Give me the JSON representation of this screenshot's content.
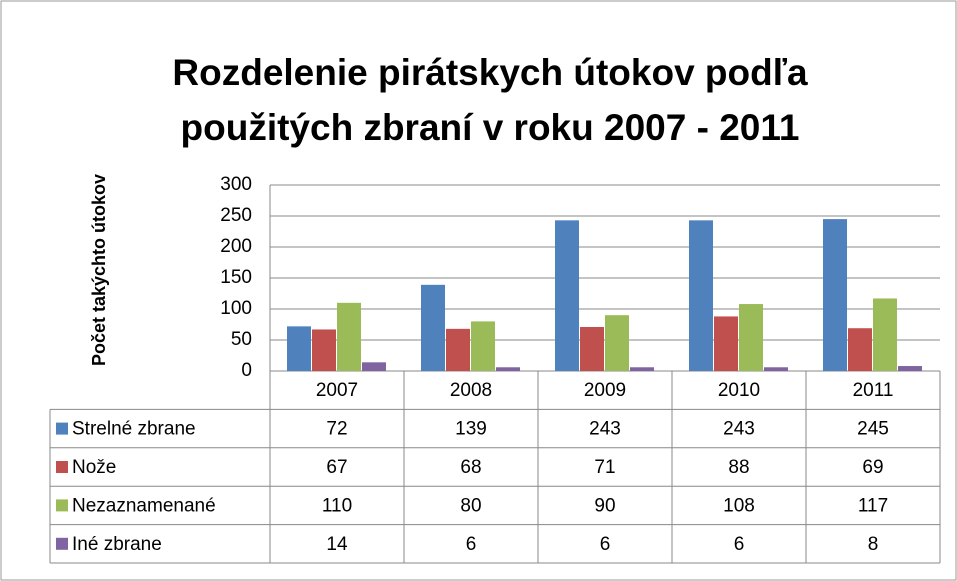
{
  "chart_data": {
    "type": "bar",
    "title": [
      "Rozdelenie pirátskych útokov podľa",
      "použitých zbraní v roku 2007 - 2011"
    ],
    "y_label": "Počet takýchto útokov",
    "categories": [
      "2007",
      "2008",
      "2009",
      "2010",
      "2011"
    ],
    "series": [
      {
        "name": "Strelné zbrane",
        "color": "#4f81bd",
        "values": [
          72,
          139,
          243,
          243,
          245
        ]
      },
      {
        "name": "Nože",
        "color": "#c0504d",
        "values": [
          67,
          68,
          71,
          88,
          69
        ]
      },
      {
        "name": "Nezaznamenané",
        "color": "#9bbb59",
        "values": [
          110,
          80,
          90,
          108,
          117
        ]
      },
      {
        "name": "Iné zbrane",
        "color": "#8064a2",
        "values": [
          14,
          6,
          6,
          6,
          8
        ]
      }
    ],
    "ylim": [
      0,
      300
    ],
    "yticks": [
      0,
      50,
      100,
      150,
      200,
      250,
      300
    ],
    "grid": true,
    "legend": "table"
  }
}
